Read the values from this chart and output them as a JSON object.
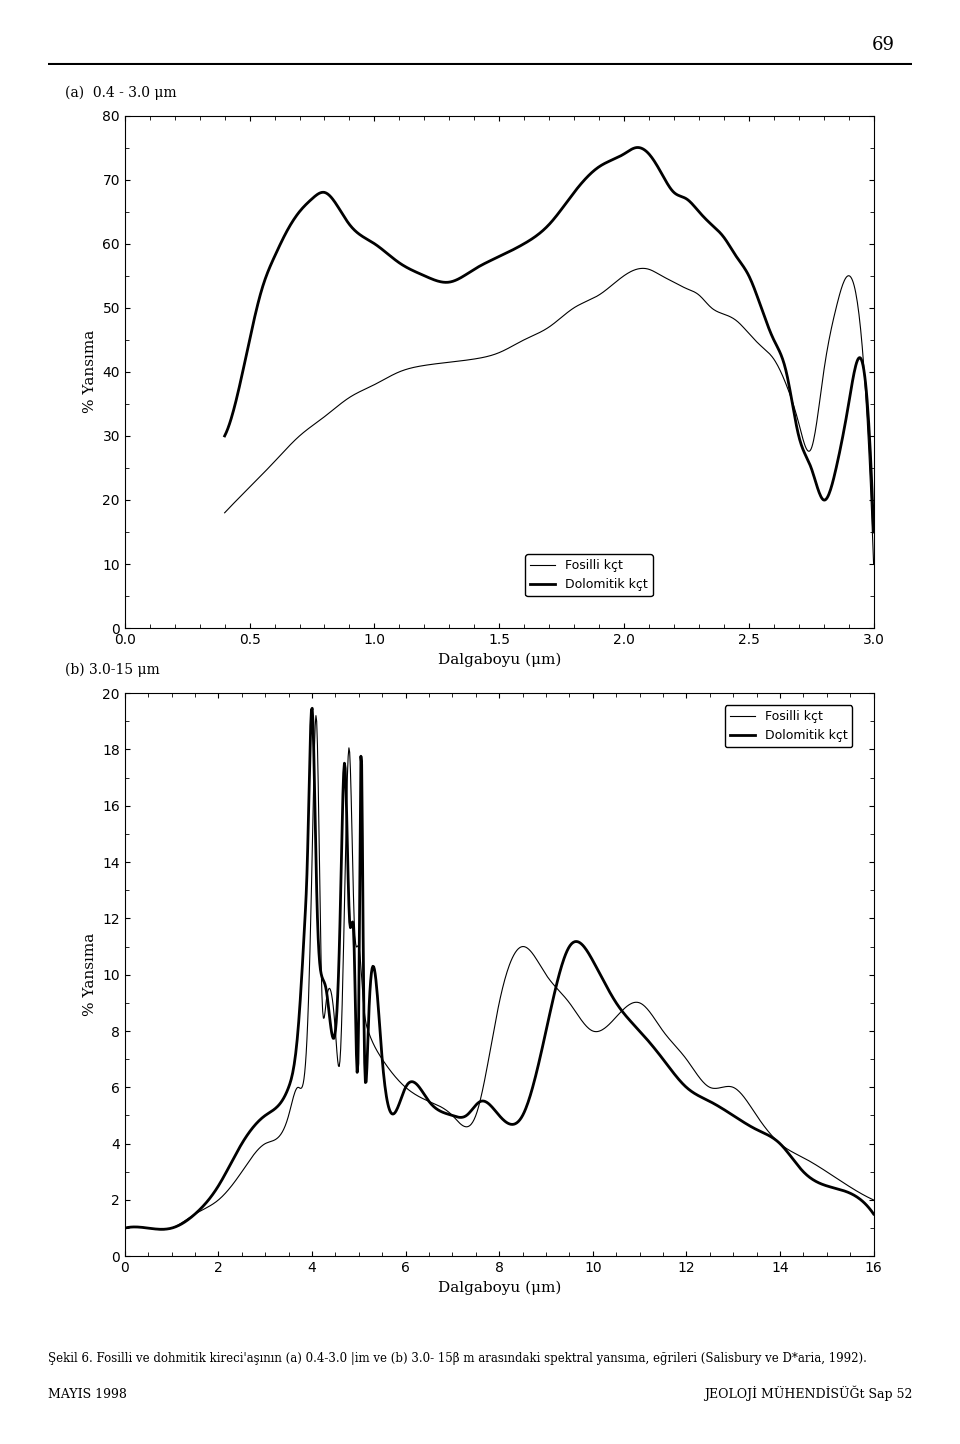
{
  "title_a": "(a)  0.4 - 3.0 μm",
  "title_b": "(b) 3.0-15 μm",
  "xlabel_a": "Dalgaboyu (μm)",
  "xlabel_b": "Dalgaboyu (μm)",
  "ylabel": "% Yansıma",
  "xlim_a": [
    0,
    3.0
  ],
  "ylim_a": [
    0,
    80
  ],
  "xlim_b": [
    0,
    16
  ],
  "ylim_b": [
    0,
    20
  ],
  "yticks_a": [
    0,
    10,
    20,
    30,
    40,
    50,
    60,
    70,
    80
  ],
  "xticks_a": [
    0,
    0.5,
    1,
    1.5,
    2,
    2.5,
    3
  ],
  "yticks_b": [
    0,
    2,
    4,
    6,
    8,
    10,
    12,
    14,
    16,
    18,
    20
  ],
  "xticks_b": [
    0,
    2,
    4,
    6,
    8,
    10,
    12,
    14,
    16
  ],
  "legend_thin": "Fosilli kçt",
  "legend_thick": "Dolomitik kçt",
  "bg_color": "#ffffff",
  "line_color": "#000000",
  "page_number": "69",
  "header_text": "",
  "footer_left": "MAYIS 1998",
  "footer_right": "JEOLOJİ MÜHENDİSÜĞt Sap 52"
}
